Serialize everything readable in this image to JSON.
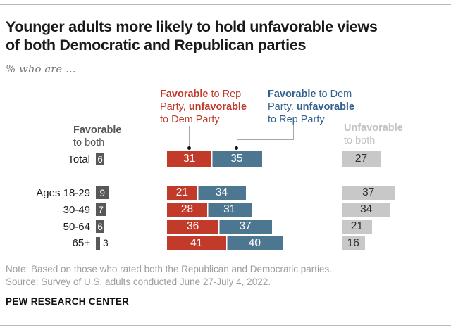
{
  "header": {
    "title_line1": "Younger adults more likely to hold unfavorable views",
    "title_line2": "of both Democratic and Republican parties",
    "subtitle": "% who are ..."
  },
  "legend": {
    "favorable_both_bold": "Favorable",
    "favorable_both_rest": "to both",
    "rep_bold1": "Favorable",
    "rep_rest1": " to Rep",
    "rep_pre2": "Party, ",
    "rep_bold2": "unfavorable",
    "rep_line3": "to Dem Party",
    "dem_bold1": "Favorable",
    "dem_rest1": " to Dem",
    "dem_pre2": "Party, ",
    "dem_bold2": "unfavorable",
    "dem_line3": "to Rep Party",
    "unfavorable_both_bold": "Unfavorable",
    "unfavorable_both_rest": "to both"
  },
  "colors": {
    "rep_bar": "#c23b2a",
    "dem_bar": "#4d7690",
    "favorable_both_bar": "#58585a",
    "unfavorable_both_bar": "#c8c8c8",
    "rep_legend_text": "#c0392b",
    "dem_legend_text": "#33618e",
    "unfavorable_legend_text": "#c2c2c2"
  },
  "chart_data": {
    "type": "bar",
    "orientation": "horizontal",
    "value_unit": "percent",
    "title": "Younger adults more likely to hold unfavorable views of both Democratic and Republican parties",
    "subtitle": "% who are ...",
    "categories": [
      "Total",
      "Ages 18-29",
      "30-49",
      "50-64",
      "65+"
    ],
    "series": [
      {
        "name": "Favorable to both",
        "color": "#58585a",
        "values": [
          6,
          9,
          7,
          6,
          3
        ]
      },
      {
        "name": "Favorable to Rep Party, unfavorable to Dem Party",
        "color": "#c23b2a",
        "values": [
          31,
          21,
          28,
          36,
          41
        ]
      },
      {
        "name": "Favorable to Dem Party, unfavorable to Rep Party",
        "color": "#4d7690",
        "values": [
          35,
          34,
          31,
          37,
          40
        ]
      },
      {
        "name": "Unfavorable to both",
        "color": "#c8c8c8",
        "values": [
          27,
          37,
          34,
          21,
          16
        ]
      }
    ],
    "legend_position": "top",
    "grid": false
  },
  "footer": {
    "note": "Note: Based on those who rated both the Republican and Democratic parties.",
    "source": "Source: Survey of U.S. adults conducted June 27-July 4, 2022.",
    "brand": "PEW RESEARCH CENTER"
  }
}
